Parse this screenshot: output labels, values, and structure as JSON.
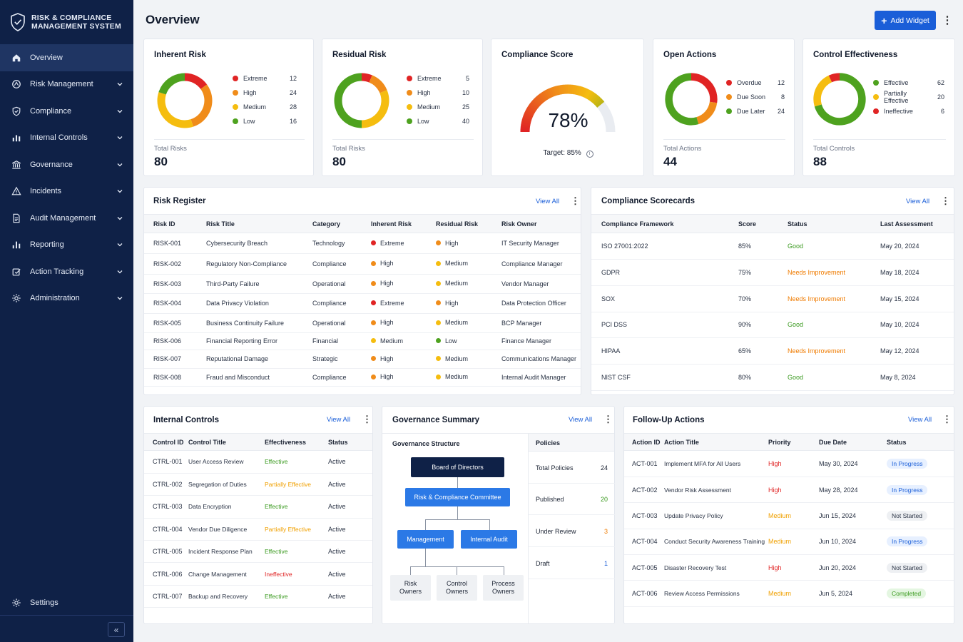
{
  "app": {
    "title_line1": "RISK & COMPLIANCE",
    "title_line2": "MANAGEMENT SYSTEM"
  },
  "sidebar": {
    "items": [
      {
        "label": "Overview",
        "icon": "home-icon"
      },
      {
        "label": "Risk Management",
        "icon": "alert-circle-icon"
      },
      {
        "label": "Compliance",
        "icon": "shield-check-icon"
      },
      {
        "label": "Internal Controls",
        "icon": "bar-chart-icon"
      },
      {
        "label": "Governance",
        "icon": "bank-icon"
      },
      {
        "label": "Incidents",
        "icon": "warning-triangle-icon"
      },
      {
        "label": "Audit Management",
        "icon": "document-icon"
      },
      {
        "label": "Reporting",
        "icon": "reporting-icon"
      },
      {
        "label": "Action Tracking",
        "icon": "action-tracking-icon"
      },
      {
        "label": "Administration",
        "icon": "gear-icon"
      }
    ],
    "settings_label": "Settings",
    "collapse_glyph": "«"
  },
  "header": {
    "title": "Overview",
    "add_widget_label": "Add Widget",
    "add_widget_icon": "+"
  },
  "kpis": {
    "inherent": {
      "title": "Inherent Risk",
      "legend": [
        {
          "label": "Extreme",
          "value": "12",
          "color": "#e02424"
        },
        {
          "label": "High",
          "value": "24",
          "color": "#f08c1a"
        },
        {
          "label": "Medium",
          "value": "28",
          "color": "#f5bd0f"
        },
        {
          "label": "Low",
          "value": "16",
          "color": "#4ea21f"
        }
      ],
      "total_label": "Total Risks",
      "total_value": "80"
    },
    "residual": {
      "title": "Residual Risk",
      "legend": [
        {
          "label": "Extreme",
          "value": "5",
          "color": "#e02424"
        },
        {
          "label": "High",
          "value": "10",
          "color": "#f08c1a"
        },
        {
          "label": "Medium",
          "value": "25",
          "color": "#f5bd0f"
        },
        {
          "label": "Low",
          "value": "40",
          "color": "#4ea21f"
        }
      ],
      "total_label": "Total Risks",
      "total_value": "80"
    },
    "compliance": {
      "title": "Compliance Score",
      "score_text": "78%",
      "score_fraction": 0.78,
      "target_text": "Target: 85%",
      "info_glyph": "i"
    },
    "actions": {
      "title": "Open Actions",
      "legend": [
        {
          "label": "Overdue",
          "value": "12",
          "color": "#e02424"
        },
        {
          "label": "Due Soon",
          "value": "8",
          "color": "#f08c1a"
        },
        {
          "label": "Due Later",
          "value": "24",
          "color": "#4ea21f"
        }
      ],
      "total_label": "Total Actions",
      "total_value": "44"
    },
    "controls": {
      "title": "Control Effectiveness",
      "legend": [
        {
          "label": "Effective",
          "value": "62",
          "color": "#4ea21f"
        },
        {
          "label": "Partially Effective",
          "value": "20",
          "color": "#f5bd0f"
        },
        {
          "label": "Ineffective",
          "value": "6",
          "color": "#e02424"
        }
      ],
      "total_label": "Total Controls",
      "total_value": "88"
    }
  },
  "risk_register": {
    "title": "Risk Register",
    "view_all": "View All",
    "columns": [
      "Risk ID",
      "Risk Title",
      "Category",
      "Inherent Risk",
      "Residual Risk",
      "Risk Owner"
    ],
    "rows": [
      {
        "id": "RISK-001",
        "title": "Cybersecurity Breach",
        "category": "Technology",
        "inherent": "Extreme",
        "residual": "High",
        "owner": "IT Security Manager"
      },
      {
        "id": "RISK-002",
        "title": "Regulatory Non-Compliance",
        "category": "Compliance",
        "inherent": "High",
        "residual": "Medium",
        "owner": "Compliance Manager"
      },
      {
        "id": "RISK-003",
        "title": "Third-Party Failure",
        "category": "Operational",
        "inherent": "High",
        "residual": "Medium",
        "owner": "Vendor Manager"
      },
      {
        "id": "RISK-004",
        "title": "Data Privacy Violation",
        "category": "Compliance",
        "inherent": "Extreme",
        "residual": "High",
        "owner": "Data Protection Officer"
      },
      {
        "id": "RISK-005",
        "title": "Business Continuity Failure",
        "category": "Operational",
        "inherent": "High",
        "residual": "Medium",
        "owner": "BCP Manager"
      },
      {
        "id": "RISK-006",
        "title": "Financial Reporting Error",
        "category": "Financial",
        "inherent": "Medium",
        "residual": "Low",
        "owner": "Finance Manager"
      },
      {
        "id": "RISK-007",
        "title": "Reputational Damage",
        "category": "Strategic",
        "inherent": "High",
        "residual": "Medium",
        "owner": "Communications Manager"
      },
      {
        "id": "RISK-008",
        "title": "Fraud and Misconduct",
        "category": "Compliance",
        "inherent": "High",
        "residual": "Medium",
        "owner": "Internal Audit Manager"
      }
    ]
  },
  "scorecards": {
    "title": "Compliance Scorecards",
    "view_all": "View All",
    "columns": [
      "Compliance Framework",
      "Score",
      "Status",
      "Last Assessment"
    ],
    "rows": [
      {
        "framework": "ISO 27001:2022",
        "score": "85%",
        "status": "Good",
        "date": "May 20, 2024"
      },
      {
        "framework": "GDPR",
        "score": "75%",
        "status": "Needs Improvement",
        "date": "May 18, 2024"
      },
      {
        "framework": "SOX",
        "score": "70%",
        "status": "Needs Improvement",
        "date": "May 15, 2024"
      },
      {
        "framework": "PCI DSS",
        "score": "90%",
        "status": "Good",
        "date": "May 10, 2024"
      },
      {
        "framework": "HIPAA",
        "score": "65%",
        "status": "Needs Improvement",
        "date": "May 12, 2024"
      },
      {
        "framework": "NIST CSF",
        "score": "80%",
        "status": "Good",
        "date": "May 8, 2024"
      }
    ]
  },
  "internal_controls": {
    "title": "Internal Controls",
    "view_all": "View All",
    "columns": [
      "Control ID",
      "Control Title",
      "Effectiveness",
      "Status"
    ],
    "rows": [
      {
        "id": "CTRL-001",
        "title": "User Access Review",
        "eff": "Effective",
        "status": "Active"
      },
      {
        "id": "CTRL-002",
        "title": "Segregation of Duties",
        "eff": "Partially Effective",
        "status": "Active"
      },
      {
        "id": "CTRL-003",
        "title": "Data Encryption",
        "eff": "Effective",
        "status": "Active"
      },
      {
        "id": "CTRL-004",
        "title": "Vendor Due Diligence",
        "eff": "Partially Effective",
        "status": "Active"
      },
      {
        "id": "CTRL-005",
        "title": "Incident Response Plan",
        "eff": "Effective",
        "status": "Active"
      },
      {
        "id": "CTRL-006",
        "title": "Change Management",
        "eff": "Ineffective",
        "status": "Active"
      },
      {
        "id": "CTRL-007",
        "title": "Backup and Recovery",
        "eff": "Effective",
        "status": "Active"
      }
    ]
  },
  "governance": {
    "title": "Governance Summary",
    "view_all": "View All",
    "structure_label": "Governance Structure",
    "board": "Board of Directors",
    "committee": "Risk & Compliance Committee",
    "management": "Management",
    "internal_audit": "Internal Audit",
    "risk_owners_1": "Risk",
    "risk_owners_2": "Owners",
    "control_owners_1": "Control",
    "control_owners_2": "Owners",
    "process_owners_1": "Process",
    "process_owners_2": "Owners",
    "policies_label": "Policies",
    "policies": [
      {
        "label": "Total Policies",
        "value": "24",
        "color": "#1c2434"
      },
      {
        "label": "Published",
        "value": "20",
        "color": "#3a9a1f"
      },
      {
        "label": "Under Review",
        "value": "3",
        "color": "#ef7b00"
      },
      {
        "label": "Draft",
        "value": "1",
        "color": "#1a5ed8"
      }
    ]
  },
  "followup": {
    "title": "Follow-Up Actions",
    "view_all": "View All",
    "columns": [
      "Action ID",
      "Action Title",
      "Priority",
      "Due Date",
      "Status"
    ],
    "rows": [
      {
        "id": "ACT-001",
        "title": "Implement MFA for All Users",
        "priority": "High",
        "due": "May 30, 2024",
        "status": "In Progress"
      },
      {
        "id": "ACT-002",
        "title": "Vendor Risk Assessment",
        "priority": "High",
        "due": "May 28, 2024",
        "status": "In Progress"
      },
      {
        "id": "ACT-003",
        "title": "Update Privacy Policy",
        "priority": "Medium",
        "due": "Jun 15, 2024",
        "status": "Not Started"
      },
      {
        "id": "ACT-004",
        "title": "Conduct Security Awareness Training",
        "priority": "Medium",
        "due": "Jun 10, 2024",
        "status": "In Progress"
      },
      {
        "id": "ACT-005",
        "title": "Disaster Recovery Test",
        "priority": "High",
        "due": "Jun 20, 2024",
        "status": "Not Started"
      },
      {
        "id": "ACT-006",
        "title": "Review Access Permissions",
        "priority": "Medium",
        "due": "Jun 5, 2024",
        "status": "Completed"
      }
    ]
  },
  "colors": {
    "extreme": "#e02424",
    "high": "#f08c1a",
    "medium": "#f5bd0f",
    "low": "#4ea21f",
    "accent": "#1a5ed8",
    "sidebar": "#0f2147"
  }
}
